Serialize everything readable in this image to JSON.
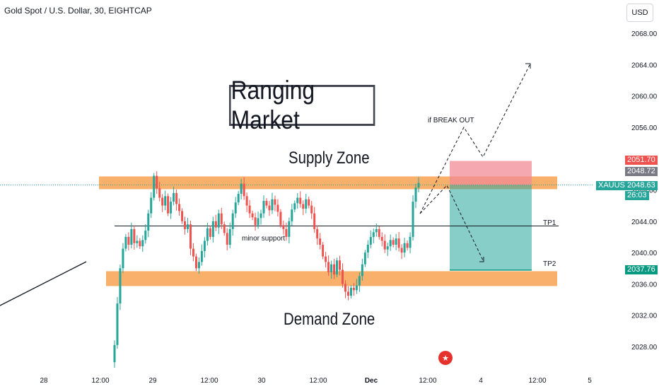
{
  "header": {
    "title": "Gold Spot / U.S. Dollar, 30, EIGHTCAP",
    "currency_button": "USD"
  },
  "annotations": {
    "ranging_market": "Ranging Market",
    "supply_zone": "Supply Zone",
    "demand_zone": "Demand Zone",
    "minor_support": "minor support",
    "if_break_out": "if BREAK OUT",
    "tp1": "TP1",
    "tp2": "TP2"
  },
  "price_tags": {
    "red_level": "51.70",
    "gray_level": "2048.72",
    "symbol": "XAUUSD",
    "last_price": "2048.63",
    "countdown": "26:03",
    "tp2_level": "2037.76",
    "red_prefix": "20"
  },
  "colors": {
    "up": "#26a69a",
    "down": "#ef5350",
    "zone": "#f7a75a",
    "stop_zone": "#f28b96",
    "target_zone": "#26a69a",
    "price_line": "#26a69a"
  },
  "chart_data": {
    "type": "candlestick",
    "symbol": "XAUUSD",
    "timeframe": "30",
    "ylim": [
      2025,
      2071
    ],
    "y_ticks": [
      2028.0,
      2032.0,
      2036.0,
      2040.0,
      2044.0,
      2048.0,
      2052.0,
      2056.0,
      2060.0,
      2064.0,
      2068.0
    ],
    "x_ticks": [
      "28",
      "12:00",
      "29",
      "12:00",
      "30",
      "12:00",
      "Dec",
      "12:00",
      "4",
      "12:00",
      "5"
    ],
    "supply_zone": [
      2048.2,
      2049.9
    ],
    "demand_zone": [
      2035.9,
      2037.8
    ],
    "minor_support": 2043.4,
    "position": {
      "entry": 2048.63,
      "stop": 2051.7,
      "tp1": 2043.4,
      "tp2": 2037.76
    },
    "last_price": 2048.63,
    "price_series": [
      2026.0,
      2028.2,
      2033.5,
      2038.0,
      2040.5,
      2042.0,
      2041.0,
      2043.0,
      2041.2,
      2041.5,
      2040.8,
      2041.6,
      2042.8,
      2045.0,
      2047.0,
      2049.8,
      2048.2,
      2047.0,
      2046.0,
      2047.2,
      2045.0,
      2046.5,
      2047.6,
      2046.2,
      2045.3,
      2044.0,
      2043.0,
      2043.6,
      2040.5,
      2039.5,
      2038.0,
      2038.8,
      2040.2,
      2041.5,
      2043.1,
      2042.0,
      2044.0,
      2043.2,
      2045.0,
      2043.6,
      2042.5,
      2041.0,
      2043.0,
      2045.0,
      2046.4,
      2047.5,
      2048.8,
      2047.2,
      2046.0,
      2045.0,
      2044.5,
      2043.5,
      2044.4,
      2045.0,
      2046.6,
      2046.0,
      2045.4,
      2046.8,
      2046.1,
      2045.2,
      2043.5,
      2043.0,
      2042.0,
      2044.0,
      2045.5,
      2046.3,
      2047.0,
      2046.2,
      2045.6,
      2046.8,
      2046.0,
      2045.0,
      2043.0,
      2041.8,
      2041.0,
      2039.5,
      2038.8,
      2037.5,
      2038.5,
      2037.2,
      2039.0,
      2037.8,
      2036.0,
      2035.0,
      2034.5,
      2035.5,
      2035.2,
      2035.8,
      2037.0,
      2038.5,
      2040.0,
      2041.0,
      2042.0,
      2042.6,
      2043.0,
      2042.0,
      2041.5,
      2040.4,
      2040.8,
      2041.6,
      2041.0,
      2041.8,
      2040.6,
      2040.0,
      2041.2,
      2040.6,
      2042.0,
      2046.5,
      2048.3,
      2048.9
    ]
  }
}
